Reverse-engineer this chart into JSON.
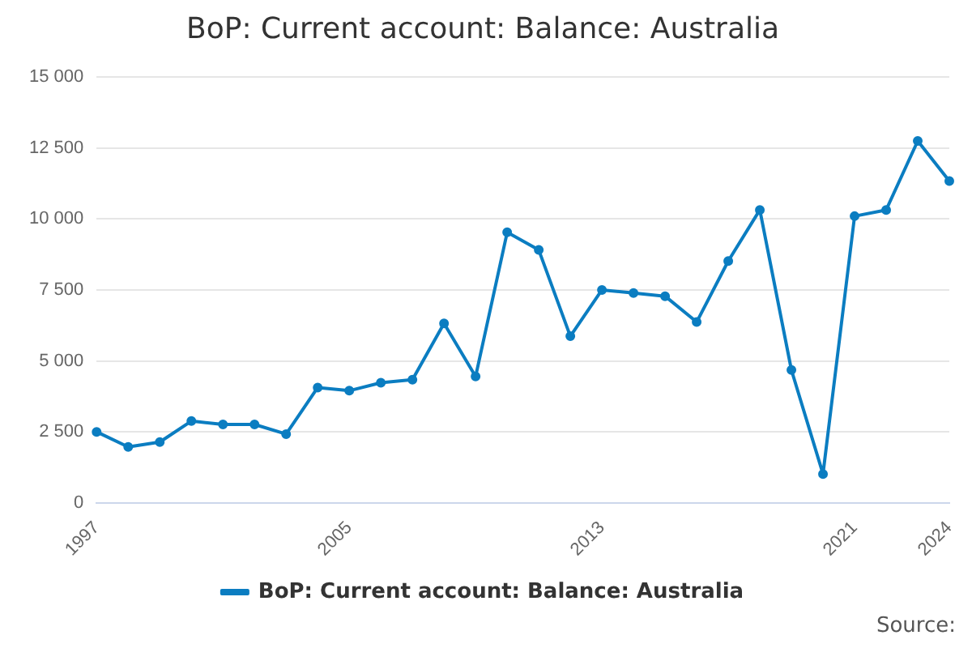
{
  "chart_data": {
    "type": "line",
    "title": "BoP: Current account: Balance: Australia",
    "categories": [
      "1997",
      null,
      null,
      null,
      null,
      null,
      null,
      null,
      "2005",
      null,
      null,
      null,
      null,
      null,
      null,
      null,
      "2013",
      null,
      null,
      null,
      null,
      null,
      null,
      null,
      "2021",
      null,
      null,
      "2024"
    ],
    "series": [
      {
        "name": "BoP: Current account: Balance: Australia",
        "color": "#0b7dc1",
        "values": [
          2500,
          1970,
          2140,
          2880,
          2760,
          2760,
          2420,
          4060,
          3950,
          4230,
          4340,
          6320,
          4450,
          9530,
          8910,
          5870,
          7500,
          7390,
          7280,
          6370,
          8520,
          10320,
          4680,
          1015,
          10100,
          10320,
          12750,
          11340
        ]
      }
    ],
    "ylim": [
      0,
      15000
    ],
    "yticks": [
      {
        "value": 0,
        "label": "0"
      },
      {
        "value": 2500,
        "label": "2 500"
      },
      {
        "value": 5000,
        "label": "5 000"
      },
      {
        "value": 7500,
        "label": "7 500"
      },
      {
        "value": 10000,
        "label": "10 000"
      },
      {
        "value": 12500,
        "label": "12 500"
      },
      {
        "value": 15000,
        "label": "15 000"
      }
    ],
    "grid": "y",
    "legend": "bottom",
    "marker": "circle",
    "line_style": "solid",
    "annotations": [
      "Source:"
    ]
  }
}
